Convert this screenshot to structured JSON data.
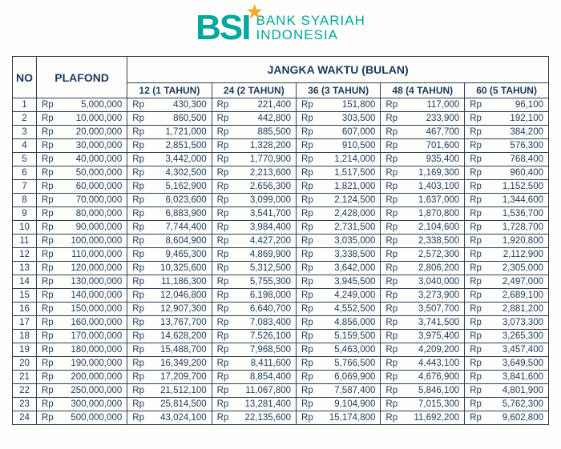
{
  "logo": {
    "main": "BSI",
    "line1": "BANK SYARIAH",
    "line2": "INDONESIA"
  },
  "headers": {
    "no": "NO",
    "plafond": "PLAFOND",
    "jangka": "JANGKA WAKTU (BULAN)",
    "cols": [
      "12 (1 TAHUN)",
      "24 (2 TAHUN)",
      "36 (3 TAHUN)",
      "48 (4 TAHUN)",
      "60 (5 TAHUN)"
    ]
  },
  "currency": "Rp",
  "rows": [
    {
      "no": 1,
      "plafond": "5,000,000",
      "v": [
        "430,300",
        "221,400",
        "151,800",
        "117,000",
        "96,100"
      ]
    },
    {
      "no": 2,
      "plafond": "10,000,000",
      "v": [
        "860,500",
        "442,800",
        "303,500",
        "233,900",
        "192,100"
      ]
    },
    {
      "no": 3,
      "plafond": "20,000,000",
      "v": [
        "1,721,000",
        "885,500",
        "607,000",
        "467,700",
        "384,200"
      ]
    },
    {
      "no": 4,
      "plafond": "30,000,000",
      "v": [
        "2,851,500",
        "1,328,200",
        "910,500",
        "701,600",
        "576,300"
      ]
    },
    {
      "no": 5,
      "plafond": "40,000,000",
      "v": [
        "3,442,000",
        "1,770,900",
        "1,214,000",
        "935,400",
        "768,400"
      ]
    },
    {
      "no": 6,
      "plafond": "50,000,000",
      "v": [
        "4,302,500",
        "2,213,600",
        "1,517,500",
        "1,169,300",
        "960,400"
      ]
    },
    {
      "no": 7,
      "plafond": "60,000,000",
      "v": [
        "5,162,900",
        "2,656,300",
        "1,821,000",
        "1,403,100",
        "1,152,500"
      ]
    },
    {
      "no": 8,
      "plafond": "70,000,000",
      "v": [
        "6,023,600",
        "3,099,000",
        "2,124,500",
        "1,637,000",
        "1,344,600"
      ]
    },
    {
      "no": 9,
      "plafond": "80,000,000",
      "v": [
        "6,883,900",
        "3,541,700",
        "2,428,000",
        "1,870,800",
        "1,536,700"
      ]
    },
    {
      "no": 10,
      "plafond": "90,000,000",
      "v": [
        "7,744,400",
        "3,984,400",
        "2,731,500",
        "2,104,600",
        "1,728,700"
      ]
    },
    {
      "no": 11,
      "plafond": "100,000,000",
      "v": [
        "8,604,900",
        "4,427,200",
        "3,035,000",
        "2,338,500",
        "1,920,800"
      ]
    },
    {
      "no": 12,
      "plafond": "110,000,000",
      "v": [
        "9,465,300",
        "4,869,900",
        "3,338,500",
        "2,572,300",
        "2,112,900"
      ]
    },
    {
      "no": 13,
      "plafond": "120,000,000",
      "v": [
        "10,325,600",
        "5,312,500",
        "3,642,000",
        "2,806,200",
        "2,305,000"
      ]
    },
    {
      "no": 14,
      "plafond": "130,000,000",
      "v": [
        "11,186,300",
        "5,755,300",
        "3,945,500",
        "3,040,000",
        "2,497,000"
      ]
    },
    {
      "no": 15,
      "plafond": "140,000,000",
      "v": [
        "12,046,800",
        "6,198,000",
        "4,249,000",
        "3,273,900",
        "2,689,100"
      ]
    },
    {
      "no": 16,
      "plafond": "150,000,000",
      "v": [
        "12,907,300",
        "6,640,700",
        "4,552,500",
        "3,507,700",
        "2,881,200"
      ]
    },
    {
      "no": 17,
      "plafond": "160,000,000",
      "v": [
        "13,767,700",
        "7,083,400",
        "4,856,000",
        "3,741,500",
        "3,073,300"
      ]
    },
    {
      "no": 18,
      "plafond": "170,000,000",
      "v": [
        "14,628,200",
        "7,526,100",
        "5,159,500",
        "3,975,400",
        "3,265,300"
      ]
    },
    {
      "no": 19,
      "plafond": "180,000,000",
      "v": [
        "15,488,700",
        "7,968,500",
        "5,463,000",
        "4,209,200",
        "3,457,400"
      ]
    },
    {
      "no": 20,
      "plafond": "190,000,000",
      "v": [
        "16,349,200",
        "8,411,600",
        "5,766,500",
        "4,443,100",
        "3,649,500"
      ]
    },
    {
      "no": 21,
      "plafond": "200,000,000",
      "v": [
        "17,209,700",
        "8,854,400",
        "6,069,900",
        "4,676,900",
        "3,841,600"
      ]
    },
    {
      "no": 22,
      "plafond": "250,000,000",
      "v": [
        "21,512,100",
        "11,067,800",
        "7,587,400",
        "5,846,100",
        "4,801,900"
      ]
    },
    {
      "no": 23,
      "plafond": "300,000,000",
      "v": [
        "25,814,500",
        "13,281,400",
        "9,104,900",
        "7,015,300",
        "5,762,300"
      ]
    },
    {
      "no": 24,
      "plafond": "500,000,000",
      "v": [
        "43,024,100",
        "22,135,600",
        "15,174,800",
        "11,692,200",
        "9,602,800"
      ]
    }
  ],
  "style": {
    "border_color": "#2c3e50",
    "text_color": "#1a3a5c",
    "accent_color": "#00a79d",
    "star_color": "#f9a825",
    "background": "#fefefc",
    "font_size_body": 11.5,
    "font_size_header": 12,
    "font_size_super_header": 14
  }
}
